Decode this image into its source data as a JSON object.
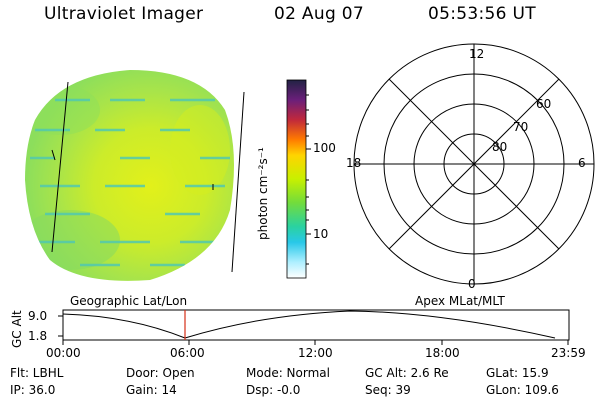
{
  "header": {
    "title": "Ultraviolet Imager",
    "date": "02 Aug 07",
    "time": "05:53:56 UT"
  },
  "colorbar": {
    "label": "photon cm⁻²s⁻¹",
    "ticks": [
      "100",
      "10"
    ],
    "colors": [
      "#222244",
      "#6a1f7a",
      "#c0283c",
      "#ff7a00",
      "#ffd400",
      "#c8f000",
      "#72dc3c",
      "#2ad2a0",
      "#28c8e8",
      "#aeefff",
      "#ffffff"
    ]
  },
  "polar": {
    "hours": [
      "12",
      "18",
      "6",
      "0"
    ],
    "latitudes": [
      "60",
      "70",
      "80"
    ]
  },
  "timeline": {
    "left_title": "Geographic Lat/Lon",
    "right_title": "Apex MLat/MLT",
    "axis_label": "GC Alt",
    "y_ticks": [
      "9.0",
      "1.8"
    ],
    "x_ticks": [
      "00:00",
      "06:00",
      "12:00",
      "18:00",
      "23:59"
    ]
  },
  "info": {
    "flt": "Flt: LBHL",
    "ip": "IP: 36.0",
    "door": "Door: Open",
    "gain": "Gain: 14",
    "mode": "Mode: Normal",
    "dsp": "Dsp:   -0.0",
    "gcalt": "GC Alt: 2.6 Re",
    "seq": "Seq: 39",
    "glat": "GLat:  15.9",
    "glon": "GLon: 109.6"
  }
}
